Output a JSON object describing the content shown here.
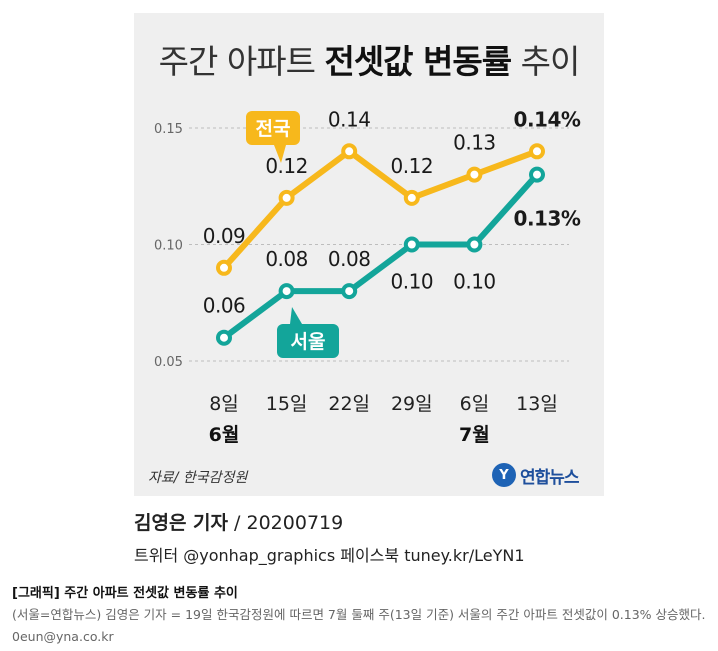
{
  "chart_data": {
    "type": "line",
    "title": {
      "normal": "주간 아파트 ",
      "bold": "전셋값 변동률",
      "suffix": " 추이"
    },
    "categories": [
      {
        "label": "8일",
        "month": "6월"
      },
      {
        "label": "15일",
        "month": ""
      },
      {
        "label": "22일",
        "month": ""
      },
      {
        "label": "29일",
        "month": ""
      },
      {
        "label": "6일",
        "month": "7월"
      },
      {
        "label": "13일",
        "month": ""
      }
    ],
    "ylim": [
      0.05,
      0.15
    ],
    "yticks": [
      "0.05",
      "0.10",
      "0.15"
    ],
    "gridlines": true,
    "series": [
      {
        "name": "전국",
        "color": "#f7b81c",
        "values": [
          0.09,
          0.12,
          0.14,
          0.12,
          0.13,
          0.14
        ],
        "labels": [
          "0.09",
          "0.12",
          "0.14",
          "0.12",
          "0.13",
          "0.14%"
        ]
      },
      {
        "name": "서울",
        "color": "#13a59a",
        "values": [
          0.06,
          0.08,
          0.08,
          0.1,
          0.1,
          0.13
        ],
        "labels": [
          "0.06",
          "0.08",
          "0.08",
          "0.10",
          "0.10",
          "0.13%"
        ]
      }
    ]
  },
  "source": "자료/ 한국감정원",
  "logo": {
    "mark": "Y",
    "text": "연합뉴스"
  },
  "byline": {
    "name": "김영은 기자",
    "date": " / 20200719"
  },
  "social": "트위터 @yonhap_graphics  페이스북 tuney.kr/LeYN1",
  "caption": {
    "title": "[그래픽] 주간 아파트 전셋값 변동률 추이",
    "body": "(서울=연합뉴스) 김영은 기자 = 19일 한국감정원에 따르면 7월 둘째 주(13일 기준) 서울의 주간 아파트 전셋값이 0.13% 상승했다. 0eun@yna.co.kr"
  }
}
